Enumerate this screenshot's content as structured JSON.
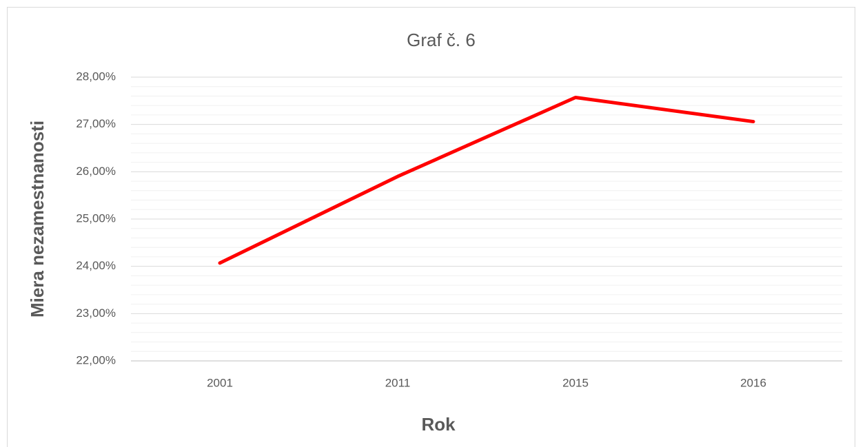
{
  "chart_data": {
    "type": "line",
    "title": "Graf č. 6",
    "x_label": "Rok",
    "y_label": "Miera nezamestnanosti",
    "categories": [
      "2001",
      "2011",
      "2015",
      "2016"
    ],
    "series": [
      {
        "name": "Miera nezamestnanosti",
        "color": "#ff0000",
        "values": [
          24.07,
          25.9,
          27.57,
          27.06
        ]
      }
    ],
    "ylim": [
      22,
      28
    ],
    "yticks": [
      {
        "value": 22,
        "label": "22,00%"
      },
      {
        "value": 23,
        "label": "23,00%"
      },
      {
        "value": 24,
        "label": "24,00%"
      },
      {
        "value": 25,
        "label": "25,00%"
      },
      {
        "value": 26,
        "label": "26,00%"
      },
      {
        "value": 27,
        "label": "27,00%"
      },
      {
        "value": 28,
        "label": "28,00%"
      }
    ],
    "minor_yticks": [
      22.2,
      22.4,
      22.6,
      22.8,
      23.2,
      23.4,
      23.6,
      23.8,
      24.2,
      24.4,
      24.6,
      24.8,
      25.2,
      25.4,
      25.6,
      25.8,
      26.2,
      26.4,
      26.6,
      26.8,
      27.2,
      27.4,
      27.6,
      27.8
    ],
    "grid": true,
    "legend": false
  }
}
